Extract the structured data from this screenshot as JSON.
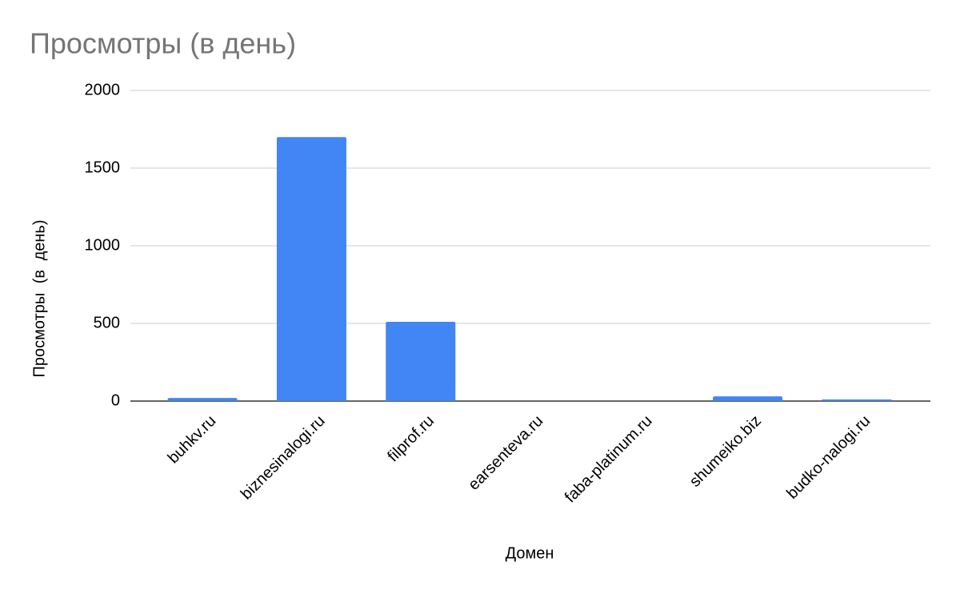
{
  "chart_data": {
    "type": "bar",
    "title": "Просмотры (в день)",
    "x_label": "Домен",
    "y_label": "Просмотры (в день)",
    "categories": [
      "buhkv.ru",
      "biznesinalogi.ru",
      "filprof.ru",
      "earsenteva.ru",
      "faba-platinum.ru",
      "shumeiko.biz",
      "budko-nalogi.ru"
    ],
    "values": [
      20,
      1700,
      510,
      0,
      0,
      30,
      10
    ],
    "color": "#4285f4",
    "ylim": [
      0,
      2000
    ],
    "yticks": [
      0,
      500,
      1000,
      1500,
      2000
    ],
    "grid": true
  }
}
